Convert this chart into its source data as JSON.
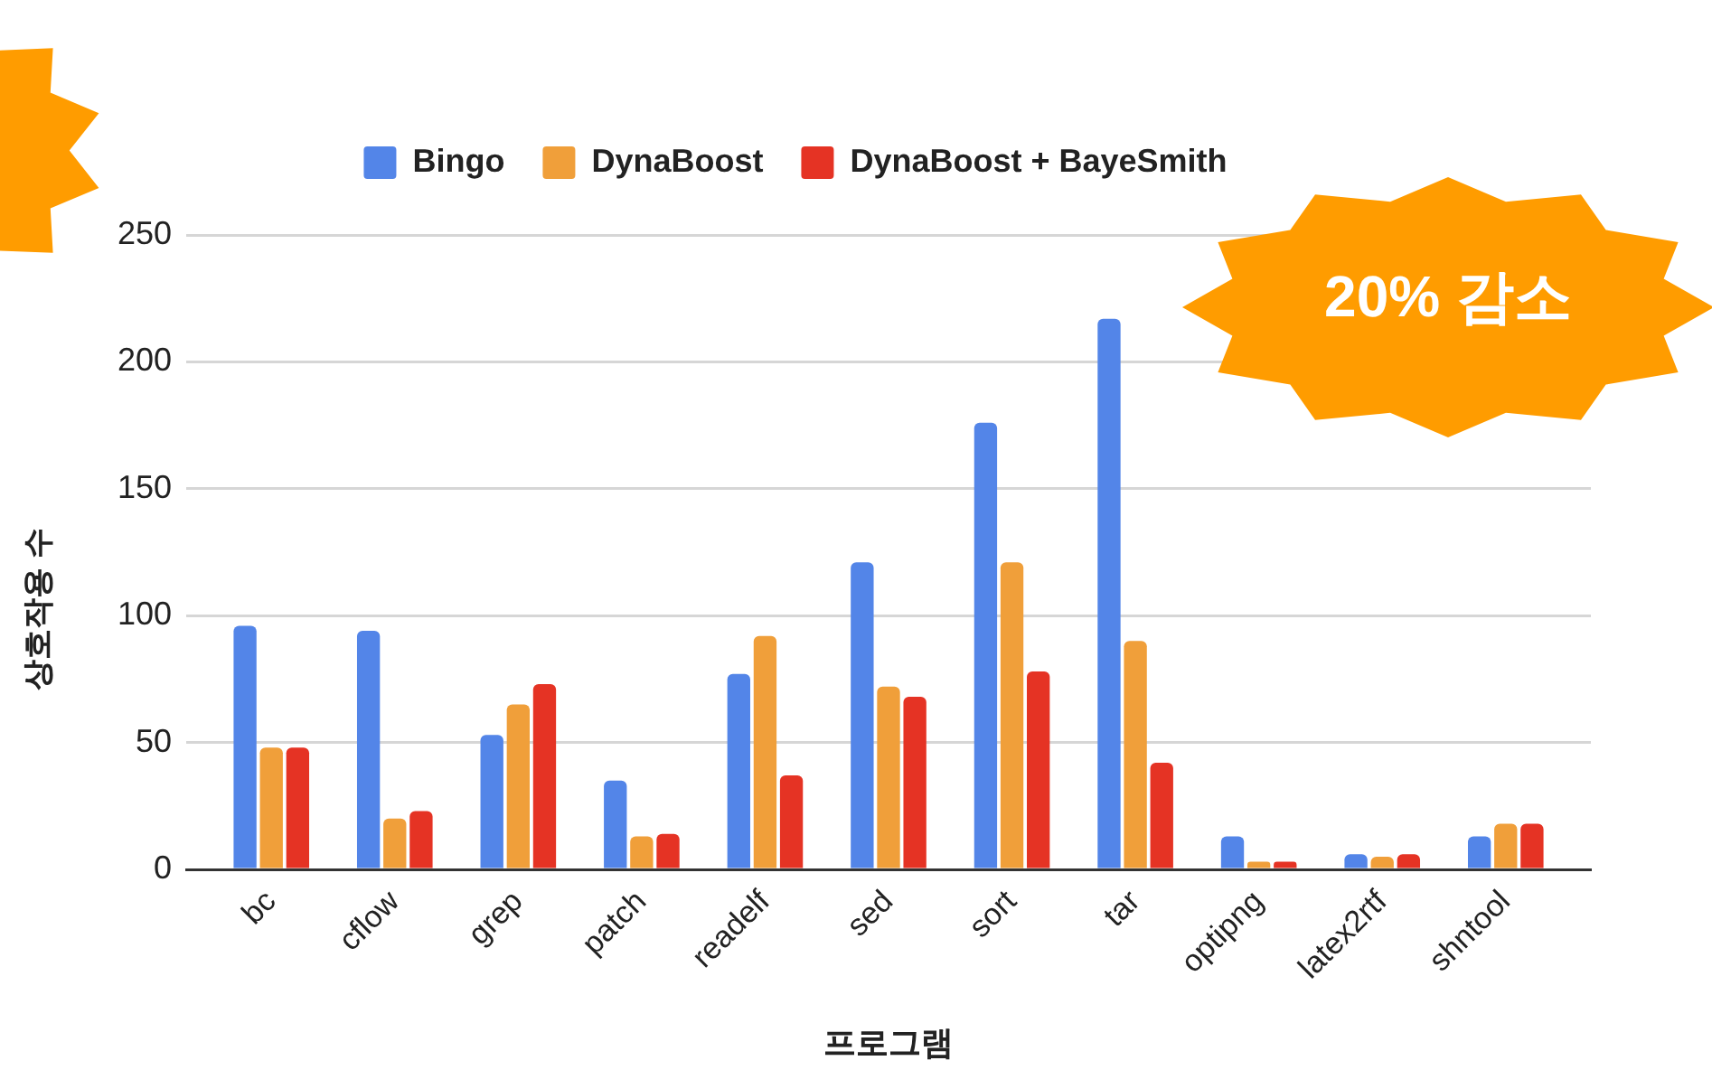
{
  "chart_data": {
    "type": "bar",
    "categories": [
      "bc",
      "cflow",
      "grep",
      "patch",
      "readelf",
      "sed",
      "sort",
      "tar",
      "optipng",
      "latex2rtf",
      "shntool"
    ],
    "series": [
      {
        "name": "Bingo",
        "color": "#5385e8",
        "values": [
          96,
          94,
          53,
          35,
          77,
          121,
          176,
          217,
          13,
          6,
          13
        ]
      },
      {
        "name": "DynaBoost",
        "color": "#f09f3a",
        "values": [
          48,
          20,
          65,
          13,
          92,
          72,
          121,
          90,
          3,
          5,
          18
        ]
      },
      {
        "name": "DynaBoost + BayeSmith",
        "color": "#e53324",
        "values": [
          48,
          23,
          73,
          14,
          37,
          68,
          78,
          42,
          3,
          6,
          18
        ]
      }
    ],
    "xlabel": "프로그램",
    "ylabel": "상호작용 수",
    "ylim": [
      0,
      250
    ],
    "yticks": [
      0,
      50,
      100,
      150,
      200,
      250
    ],
    "grid": "y",
    "legend": "top",
    "annotations": [
      "20% 감소"
    ]
  }
}
